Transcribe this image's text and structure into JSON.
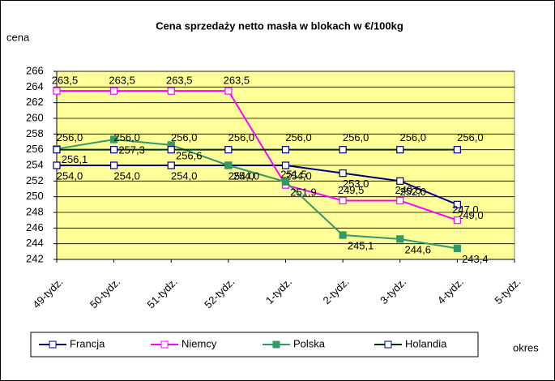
{
  "chart_data": {
    "type": "line",
    "title": "Cena sprzedaży netto masła w blokach w €/100kg",
    "y_axis_label": "cena",
    "x_axis_label": "okres",
    "categories": [
      "49-tydz.",
      "50-tydz.",
      "51-tydz.",
      "52-tydz.",
      "1-tydz.",
      "2-tydz.",
      "3-tydz.",
      "4-tydz.",
      "5-tydz."
    ],
    "ylim": [
      242,
      266
    ],
    "yticks": [
      242,
      244,
      246,
      248,
      250,
      252,
      254,
      256,
      258,
      260,
      262,
      264,
      266
    ],
    "grid": true,
    "legend": "bottom",
    "series": [
      {
        "name": "Francja",
        "color": "#000080",
        "values": [
          254.0,
          254.0,
          254.0,
          254.0,
          254.0,
          253.0,
          252.0,
          249.0,
          null
        ],
        "value_labels": [
          "254,0",
          "254,0",
          "254,0",
          "254,0",
          "254,0",
          "253,0",
          "252,0",
          "249,0",
          null
        ]
      },
      {
        "name": "Niemcy",
        "color": "#ff00ff",
        "values": [
          263.5,
          263.5,
          263.5,
          263.5,
          251.5,
          249.5,
          249.5,
          247.0,
          null
        ],
        "value_labels": [
          "263,5",
          "263,5",
          "263,5",
          "263,5",
          "251,5",
          "249,5",
          "249,5",
          "247,0",
          null
        ]
      },
      {
        "name": "Polska",
        "color": "#339966",
        "values": [
          256.1,
          257.3,
          256.6,
          254.0,
          251.9,
          245.1,
          244.6,
          243.4,
          null
        ],
        "value_labels": [
          "256,1",
          "257,3",
          "256,6",
          "254,0",
          "251,9",
          "245,1",
          "244,6",
          "243,4",
          null
        ]
      },
      {
        "name": "Holandia",
        "color": "#003300",
        "values": [
          256.0,
          256.0,
          256.0,
          256.0,
          256.0,
          256.0,
          256.0,
          256.0,
          null
        ],
        "value_labels": [
          "256,0",
          "256,0",
          "256,0",
          "256,0",
          "256,0",
          "256,0",
          "256,0",
          "256,0",
          null
        ]
      }
    ]
  }
}
